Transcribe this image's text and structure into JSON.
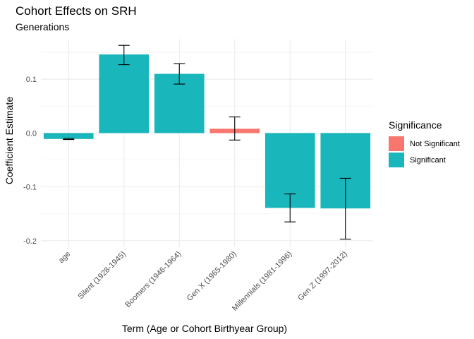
{
  "chart_data": {
    "type": "bar",
    "title": "Cohort Effects on SRH",
    "subtitle": "Generations",
    "xlabel": "Term (Age or Cohort Birthyear Group)",
    "ylabel": "Coefficient Estimate",
    "categories": [
      "age",
      "Silent (1928-1945)",
      "Boomers (1946-1964)",
      "Gen X (1965-1980)",
      "Millennials (1981-1996)",
      "Gen Z (1997-2012)"
    ],
    "values": [
      -0.011,
      0.146,
      0.11,
      0.008,
      -0.139,
      -0.14
    ],
    "error_low": [
      -0.012,
      0.127,
      0.091,
      -0.013,
      -0.165,
      -0.197
    ],
    "error_high": [
      -0.01,
      0.163,
      0.129,
      0.03,
      -0.113,
      -0.084
    ],
    "significance": [
      "Significant",
      "Significant",
      "Significant",
      "Not Significant",
      "Significant",
      "Significant"
    ],
    "ylim": [
      -0.212,
      0.175
    ],
    "yticks": [
      -0.2,
      -0.1,
      0.0,
      0.1
    ],
    "ytick_labels": [
      "-0.2",
      "-0.1",
      "0.0",
      "0.1"
    ],
    "grid": true,
    "legend": {
      "title": "Significance",
      "position": "right",
      "entries": [
        {
          "label": "Not Significant",
          "color": "#F8766D"
        },
        {
          "label": "Significant",
          "color": "#19B6BC"
        }
      ]
    },
    "colors": {
      "Not Significant": "#F8766D",
      "Significant": "#19B6BC"
    }
  }
}
